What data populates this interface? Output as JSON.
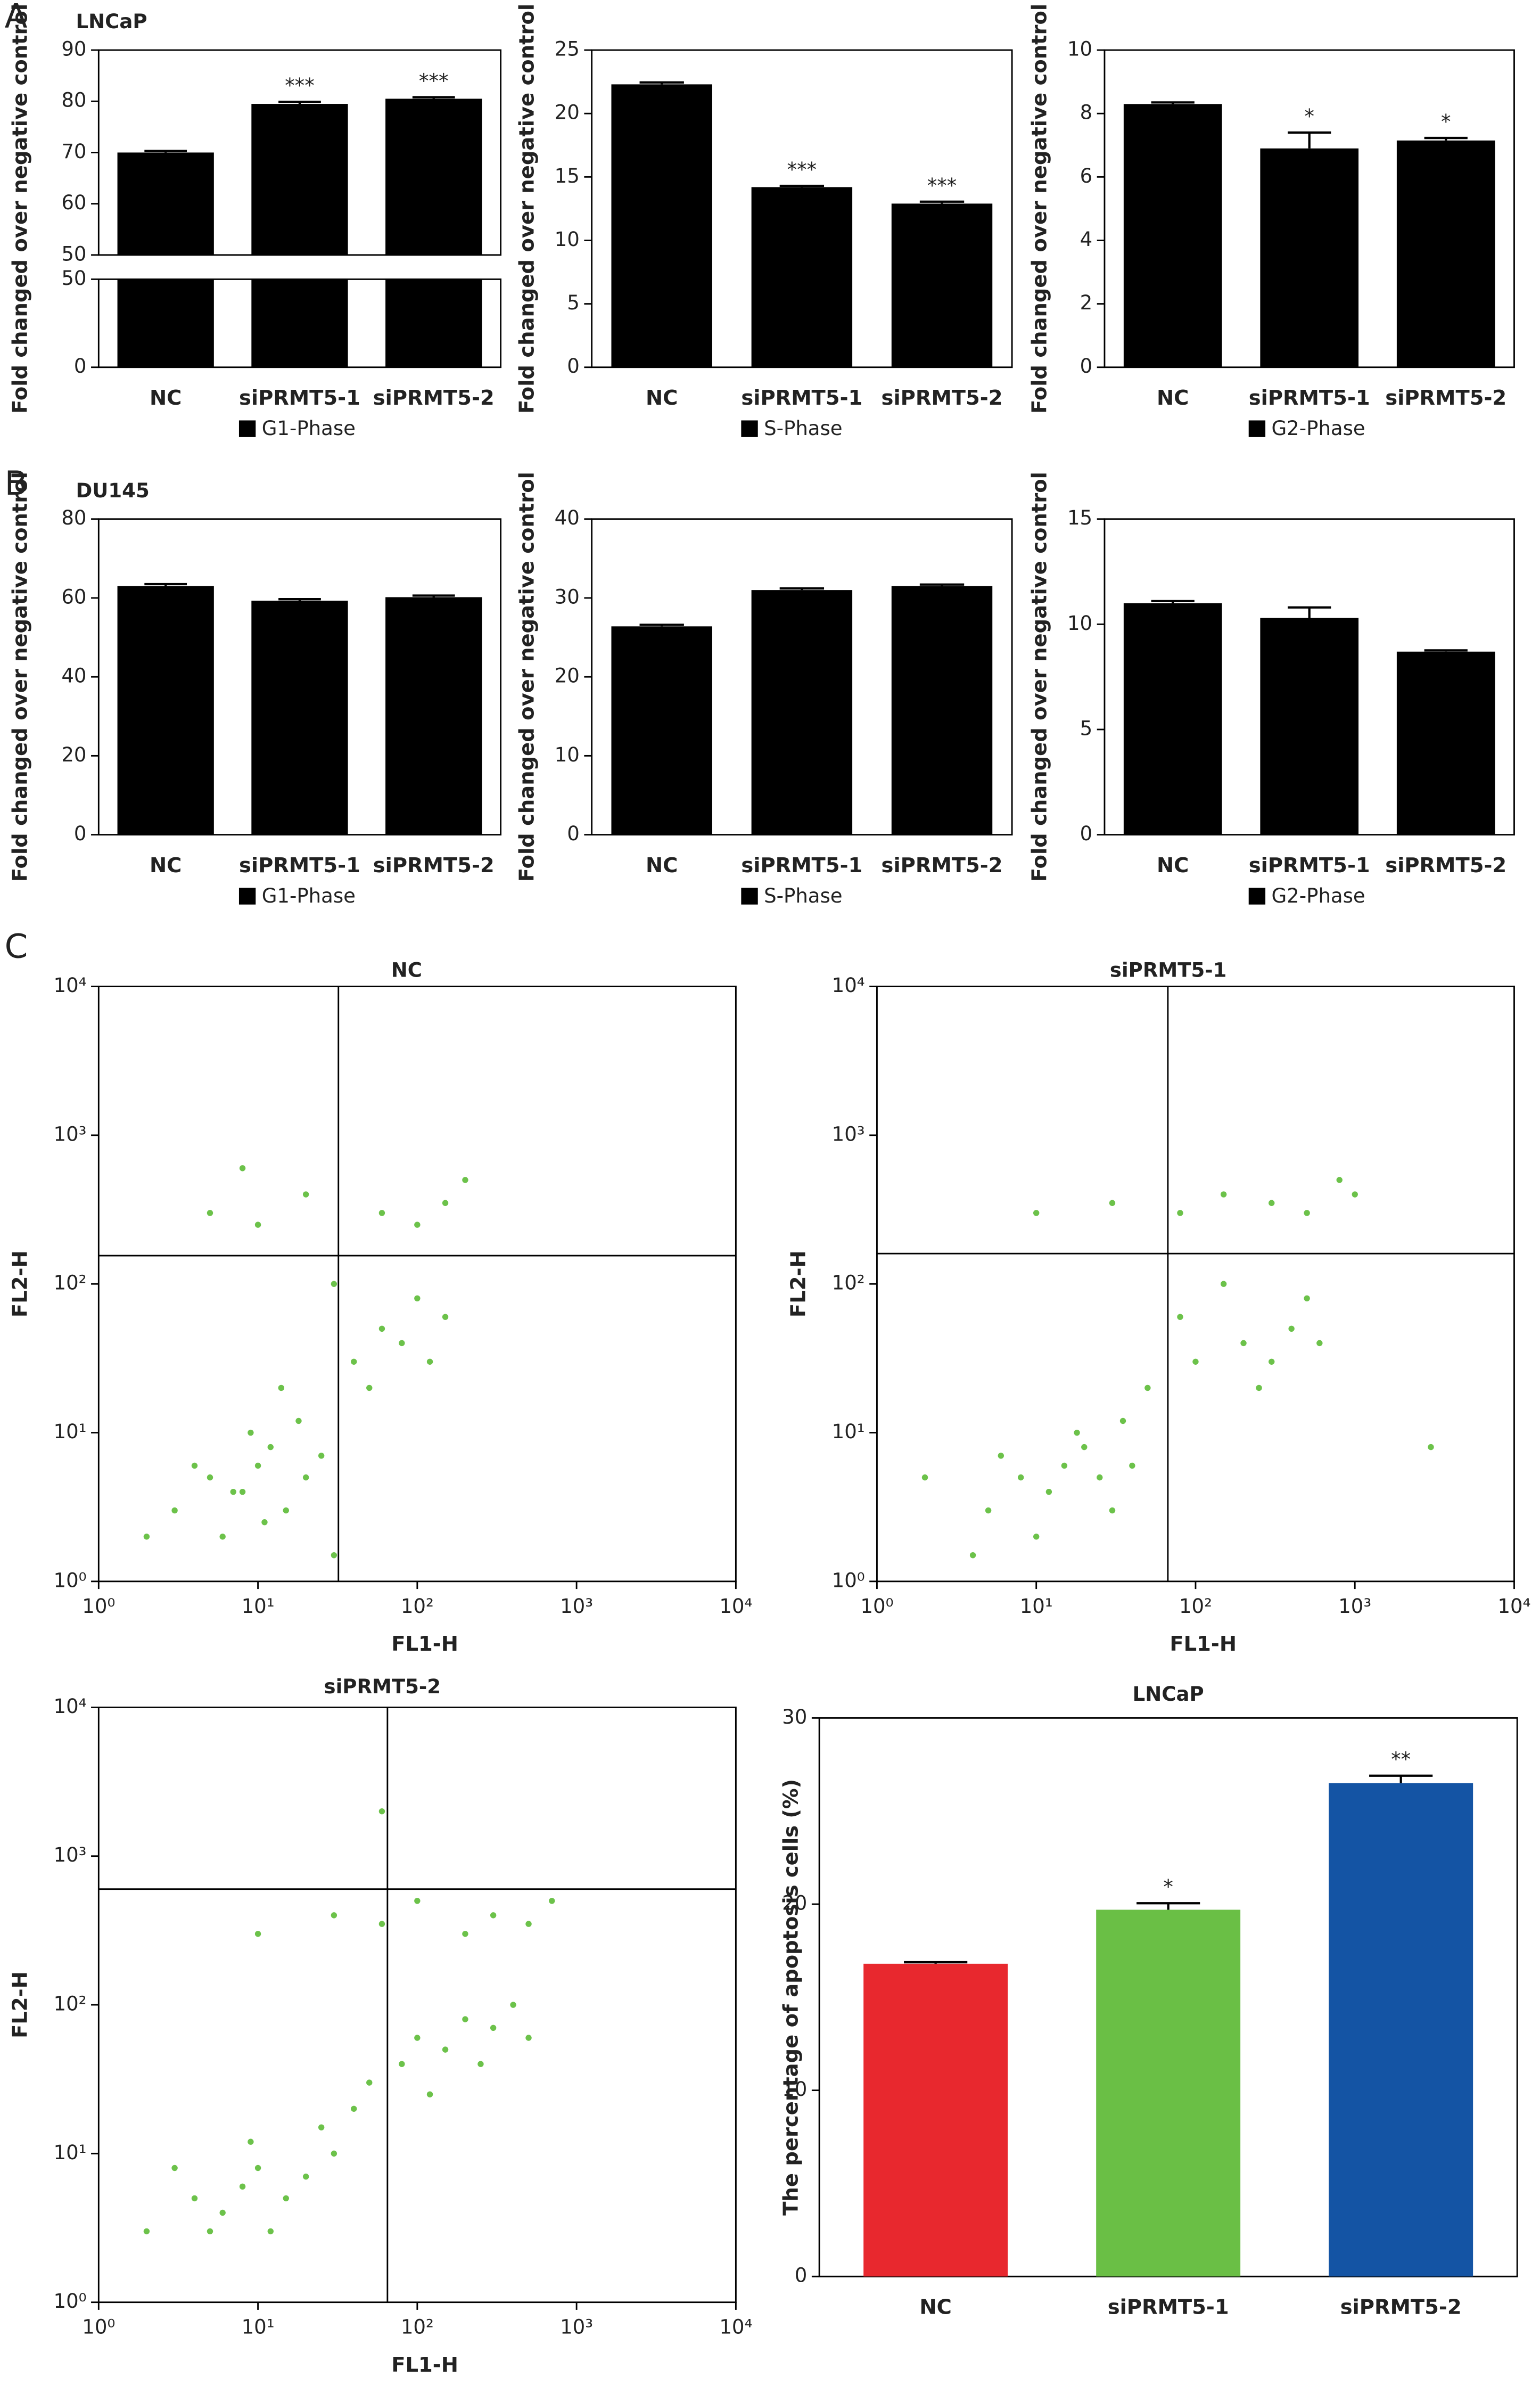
{
  "chart_data": [
    {
      "type": "bar",
      "panel_label": "A",
      "title": "LNCaP",
      "ylabel": "Fold changed over negative control",
      "categories": [
        "NC",
        "siPRMT5-1",
        "siPRMT5-2"
      ],
      "series": [
        {
          "name": "G1-Phase",
          "color": "#000000",
          "values": [
            70,
            79.5,
            80.5
          ],
          "errors": [
            0.3,
            0.4,
            0.3
          ]
        }
      ],
      "significance": [
        null,
        "***",
        "***"
      ],
      "ylim_lower": [
        0,
        50
      ],
      "yticks_lower": [
        0,
        50
      ],
      "ylim": [
        50,
        90
      ],
      "yticks": [
        50,
        60,
        70,
        80,
        90
      ]
    },
    {
      "type": "bar",
      "ylabel": "Fold changed over negative control",
      "categories": [
        "NC",
        "siPRMT5-1",
        "siPRMT5-2"
      ],
      "series": [
        {
          "name": "S-Phase",
          "color": "#000000",
          "values": [
            22.3,
            14.2,
            12.9
          ],
          "errors": [
            0.15,
            0.1,
            0.15
          ]
        }
      ],
      "significance": [
        null,
        "***",
        "***"
      ],
      "ylim": [
        0,
        25
      ],
      "yticks": [
        0,
        5,
        10,
        15,
        20,
        25
      ]
    },
    {
      "type": "bar",
      "ylabel": "Fold changed over negative control",
      "categories": [
        "NC",
        "siPRMT5-1",
        "siPRMT5-2"
      ],
      "series": [
        {
          "name": "G2-Phase",
          "color": "#000000",
          "values": [
            8.3,
            6.9,
            7.15
          ],
          "errors": [
            0.05,
            0.5,
            0.08
          ]
        }
      ],
      "significance": [
        null,
        "*",
        "*"
      ],
      "ylim": [
        0,
        10
      ],
      "yticks": [
        0,
        2,
        4,
        6,
        8,
        10
      ]
    },
    {
      "type": "bar",
      "panel_label": "B",
      "title": "DU145",
      "ylabel": "Fold changed over negative control",
      "categories": [
        "NC",
        "siPRMT5-1",
        "siPRMT5-2"
      ],
      "series": [
        {
          "name": "G1-Phase",
          "color": "#000000",
          "values": [
            63,
            59.3,
            60.2
          ],
          "errors": [
            0.5,
            0.4,
            0.4
          ]
        }
      ],
      "ylim": [
        0,
        80
      ],
      "yticks": [
        0,
        20,
        40,
        60,
        80
      ]
    },
    {
      "type": "bar",
      "ylabel": "Fold changed over negative control",
      "categories": [
        "NC",
        "siPRMT5-1",
        "siPRMT5-2"
      ],
      "series": [
        {
          "name": "S-Phase",
          "color": "#000000",
          "values": [
            26.4,
            31,
            31.5
          ],
          "errors": [
            0.2,
            0.2,
            0.2
          ]
        }
      ],
      "ylim": [
        0,
        40
      ],
      "yticks": [
        0,
        10,
        20,
        30,
        40
      ]
    },
    {
      "type": "bar",
      "ylabel": "Fold changed over negative control",
      "categories": [
        "NC",
        "siPRMT5-1",
        "siPRMT5-2"
      ],
      "series": [
        {
          "name": "G2-Phase",
          "color": "#000000",
          "values": [
            11,
            10.3,
            8.7
          ],
          "errors": [
            0.1,
            0.5,
            0.06
          ]
        }
      ],
      "ylim": [
        0,
        15
      ],
      "yticks": [
        0,
        5,
        10,
        15
      ]
    },
    {
      "type": "scatter",
      "panel_label": "C",
      "title": "NC",
      "xlabel": "FL1-H",
      "ylabel": "FL2-H",
      "color": "#6cc24a",
      "xscale": "log",
      "yscale": "log",
      "xlim": [
        1,
        10000
      ],
      "ylim": [
        1,
        10000
      ],
      "xticks": [
        {
          "value": 1,
          "label": "10⁰"
        },
        {
          "value": 10,
          "label": "10¹"
        },
        {
          "value": 100,
          "label": "10²"
        },
        {
          "value": 1000,
          "label": "10³"
        },
        {
          "value": 10000,
          "label": "10⁴"
        }
      ],
      "yticks": [
        {
          "value": 1,
          "label": "10⁰"
        },
        {
          "value": 10,
          "label": "10¹"
        },
        {
          "value": 100,
          "label": "10²"
        },
        {
          "value": 1000,
          "label": "10³"
        },
        {
          "value": 10000,
          "label": "10⁴"
        }
      ],
      "gate_x": 32,
      "gate_y": 155,
      "x": [
        3,
        5,
        8,
        10,
        12,
        15,
        20,
        6,
        9,
        18,
        25,
        4,
        14,
        7,
        11,
        40,
        60,
        80,
        100,
        120,
        150,
        30,
        50,
        5,
        10,
        20,
        60,
        100,
        150,
        200,
        8,
        2,
        30
      ],
      "y": [
        3,
        5,
        4,
        6,
        8,
        3,
        5,
        2,
        10,
        12,
        7,
        6,
        20,
        4,
        2.5,
        30,
        50,
        40,
        80,
        30,
        60,
        100,
        20,
        300,
        250,
        400,
        300,
        250,
        350,
        500,
        600,
        2,
        1.5
      ]
    },
    {
      "type": "scatter",
      "title": "siPRMT5-1",
      "xlabel": "FL1-H",
      "ylabel": "FL2-H",
      "color": "#6cc24a",
      "xscale": "log",
      "yscale": "log",
      "xlim": [
        1,
        10000
      ],
      "ylim": [
        1,
        10000
      ],
      "xticks": [
        {
          "value": 1,
          "label": "10⁰"
        },
        {
          "value": 10,
          "label": "10¹"
        },
        {
          "value": 100,
          "label": "10²"
        },
        {
          "value": 1000,
          "label": "10³"
        },
        {
          "value": 10000,
          "label": "10⁴"
        }
      ],
      "yticks": [
        {
          "value": 1,
          "label": "10⁰"
        },
        {
          "value": 10,
          "label": "10¹"
        },
        {
          "value": 100,
          "label": "10²"
        },
        {
          "value": 1000,
          "label": "10³"
        },
        {
          "value": 10000,
          "label": "10⁴"
        }
      ],
      "gate_x": 67,
      "gate_y": 160,
      "x": [
        5,
        8,
        12,
        15,
        20,
        25,
        30,
        40,
        10,
        18,
        35,
        6,
        50,
        100,
        200,
        300,
        400,
        500,
        150,
        250,
        600,
        80,
        10,
        30,
        80,
        150,
        300,
        500,
        800,
        1000,
        3000,
        2,
        4
      ],
      "y": [
        3,
        5,
        4,
        6,
        8,
        5,
        3,
        6,
        2,
        10,
        12,
        7,
        20,
        30,
        40,
        30,
        50,
        80,
        100,
        20,
        40,
        60,
        300,
        350,
        300,
        400,
        350,
        300,
        500,
        400,
        8,
        5,
        1.5
      ]
    },
    {
      "type": "scatter",
      "title": "siPRMT5-2",
      "xlabel": "FL1-H",
      "ylabel": "FL2-H",
      "color": "#6cc24a",
      "xscale": "log",
      "yscale": "log",
      "xlim": [
        1,
        10000
      ],
      "ylim": [
        1,
        10000
      ],
      "xticks": [
        {
          "value": 1,
          "label": "10⁰"
        },
        {
          "value": 10,
          "label": "10¹"
        },
        {
          "value": 100,
          "label": "10²"
        },
        {
          "value": 1000,
          "label": "10³"
        },
        {
          "value": 10000,
          "label": "10⁴"
        }
      ],
      "yticks": [
        {
          "value": 1,
          "label": "10⁰"
        },
        {
          "value": 10,
          "label": "10¹"
        },
        {
          "value": 100,
          "label": "10²"
        },
        {
          "value": 1000,
          "label": "10³"
        },
        {
          "value": 10000,
          "label": "10⁴"
        }
      ],
      "gate_x": 65,
      "gate_y": 600,
      "x": [
        4,
        6,
        8,
        10,
        12,
        15,
        20,
        30,
        5,
        9,
        25,
        40,
        50,
        80,
        100,
        150,
        200,
        300,
        400,
        120,
        250,
        500,
        10,
        30,
        60,
        100,
        200,
        300,
        500,
        700,
        2,
        3,
        60
      ],
      "y": [
        5,
        4,
        6,
        8,
        3,
        5,
        7,
        10,
        3,
        12,
        15,
        20,
        30,
        40,
        60,
        50,
        80,
        70,
        100,
        25,
        40,
        60,
        300,
        400,
        350,
        500,
        300,
        400,
        350,
        500,
        3,
        8,
        2000
      ]
    },
    {
      "type": "bar",
      "title": "LNCaP",
      "ylabel": "The percentage of apoptosis cells (%)",
      "categories": [
        "NC",
        "siPRMT5-1",
        "siPRMT5-2"
      ],
      "values": [
        16.8,
        19.7,
        26.5
      ],
      "errors": [
        0.08,
        0.35,
        0.4
      ],
      "colors": [
        "#e8282e",
        "#6abf45",
        "#1454a4"
      ],
      "significance": [
        null,
        "*",
        "**"
      ],
      "ylim": [
        0,
        30
      ],
      "yticks": [
        0,
        10,
        20,
        30
      ]
    }
  ]
}
